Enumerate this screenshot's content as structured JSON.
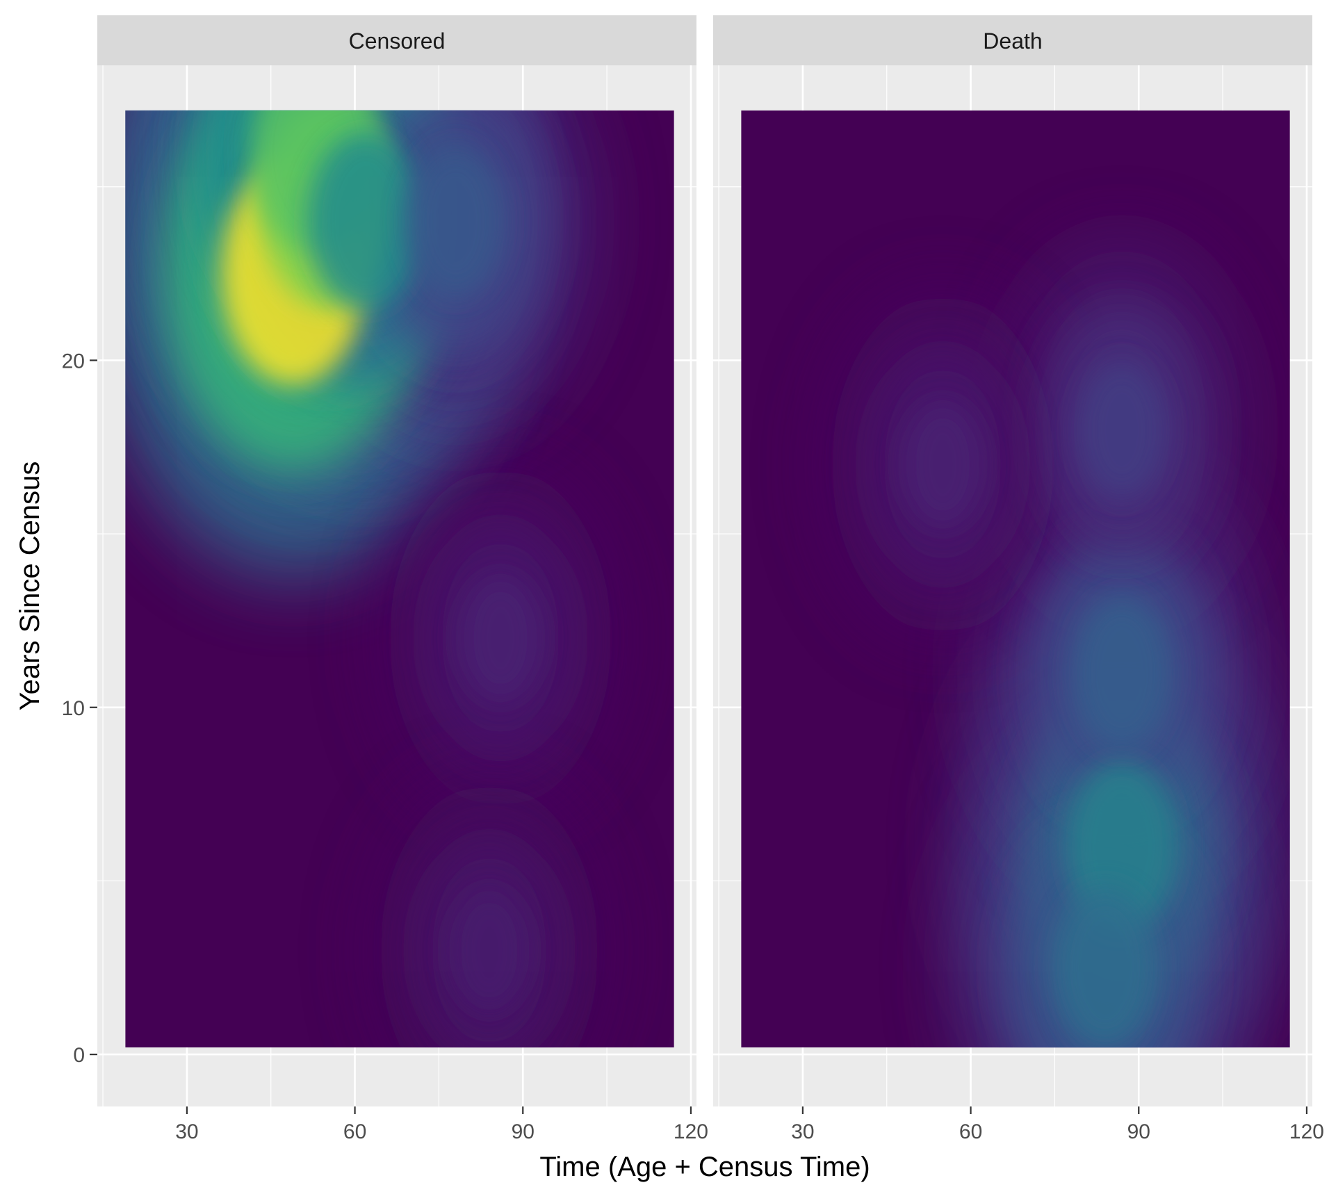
{
  "chart_data": {
    "type": "heatmap",
    "subtype": "2d-density-filled",
    "title": "",
    "xlabel": "Time (Age + Census Time)",
    "ylabel": "Years Since Census",
    "xlim": [
      14,
      121
    ],
    "ylim": [
      -1.5,
      28.5
    ],
    "xticks": [
      30,
      60,
      90,
      120
    ],
    "yticks": [
      0,
      10,
      20
    ],
    "grid": true,
    "colormap": "viridis",
    "panels": [
      {
        "name": "Censored",
        "data_extent": {
          "x": [
            19,
            117
          ],
          "y": [
            0.2,
            27.2
          ]
        },
        "peaks": [
          {
            "x": 49,
            "y": 22.5,
            "intensity": 1.0
          },
          {
            "x": 55,
            "y": 24.5,
            "intensity": 0.85
          },
          {
            "x": 53,
            "y": 26.0,
            "intensity": 0.8
          },
          {
            "x": 62,
            "y": 24.0,
            "intensity": 0.6
          },
          {
            "x": 78,
            "y": 24.0,
            "intensity": 0.35
          },
          {
            "x": 86,
            "y": 12.0,
            "intensity": 0.12
          },
          {
            "x": 84,
            "y": 3.0,
            "intensity": 0.1
          }
        ]
      },
      {
        "name": "Death",
        "data_extent": {
          "x": [
            19,
            117
          ],
          "y": [
            0.2,
            27.2
          ]
        },
        "peaks": [
          {
            "x": 87,
            "y": 6.0,
            "intensity": 0.55
          },
          {
            "x": 84,
            "y": 2.5,
            "intensity": 0.45
          },
          {
            "x": 87,
            "y": 11.0,
            "intensity": 0.38
          },
          {
            "x": 87,
            "y": 18.0,
            "intensity": 0.22
          },
          {
            "x": 55,
            "y": 17.0,
            "intensity": 0.12
          }
        ]
      }
    ]
  }
}
